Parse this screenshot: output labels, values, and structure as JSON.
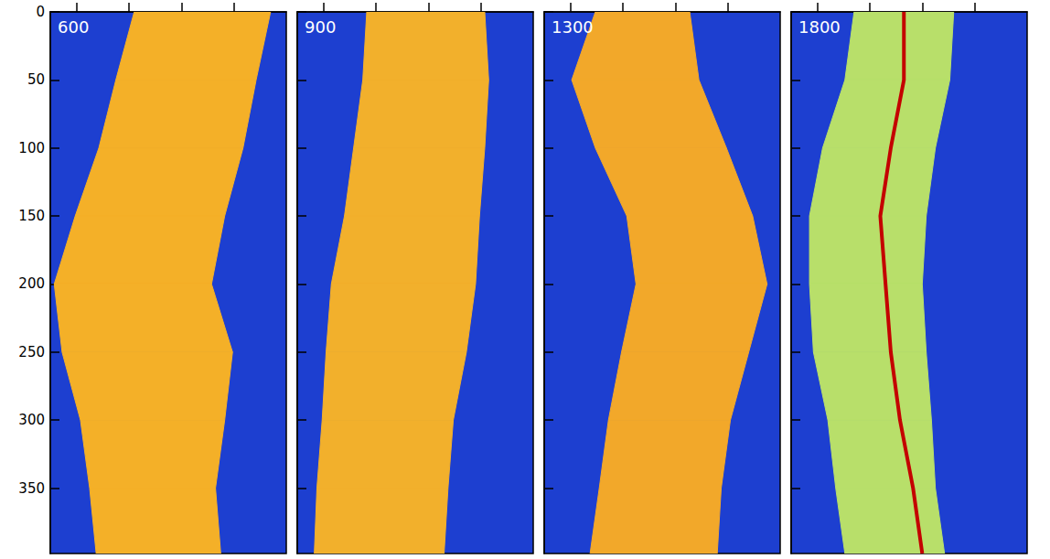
{
  "chart_data": [
    {
      "type": "band",
      "title": "600",
      "y": [
        0,
        50,
        100,
        150,
        200,
        250,
        300,
        350,
        398
      ],
      "left": [
        64,
        50,
        37,
        19,
        3,
        9,
        23,
        30,
        35
      ],
      "right": [
        168,
        157,
        147,
        133,
        123,
        139,
        133,
        126,
        130
      ],
      "color": "#f4b028",
      "xlim": [
        0,
        180
      ],
      "xticks": [
        20,
        60,
        100,
        140
      ],
      "ylim": [
        0,
        398
      ],
      "yticks": [
        0,
        50,
        100,
        150,
        200,
        250,
        300,
        350
      ],
      "tick_labels": "y",
      "grid": false
    },
    {
      "type": "band",
      "title": "900",
      "y": [
        0,
        50,
        100,
        150,
        200,
        250,
        300,
        350,
        398
      ],
      "left": [
        53,
        50,
        43,
        36,
        26,
        22,
        19,
        15,
        13
      ],
      "right": [
        143,
        146,
        143,
        139,
        136,
        129,
        119,
        115,
        112
      ],
      "color": "#f2b02c",
      "xlim": [
        0,
        180
      ],
      "xticks": [
        20,
        60,
        100,
        140
      ],
      "ylim": [
        0,
        398
      ],
      "yticks": [
        0,
        50,
        100,
        150,
        200,
        250,
        300,
        350
      ],
      "tick_labels": false,
      "grid": false
    },
    {
      "type": "band",
      "title": "1300",
      "y": [
        0,
        50,
        100,
        150,
        200,
        250,
        300,
        350,
        398
      ],
      "left": [
        39,
        21,
        39,
        63,
        70,
        59,
        49,
        42,
        35
      ],
      "right": [
        111,
        118,
        139,
        159,
        170,
        156,
        142,
        135,
        132
      ],
      "color": "#f2a82a",
      "xlim": [
        0,
        180
      ],
      "xticks": [
        20,
        60,
        100,
        140
      ],
      "ylim": [
        0,
        398
      ],
      "yticks": [
        0,
        50,
        100,
        150,
        200,
        250,
        300,
        350
      ],
      "tick_labels": false,
      "grid": false
    },
    {
      "type": "band",
      "title": "1800",
      "y": [
        0,
        50,
        100,
        150,
        200,
        250,
        300,
        350,
        398
      ],
      "left": [
        48,
        41,
        24,
        14,
        14,
        17,
        28,
        34,
        41
      ],
      "right": [
        124,
        121,
        110,
        103,
        100,
        103,
        107,
        110,
        117
      ],
      "color": "#b8df6a",
      "ridge": {
        "x": [
          86,
          86,
          76,
          68,
          72,
          76,
          83,
          93,
          100
        ],
        "color": "#c40000"
      },
      "xlim": [
        0,
        180
      ],
      "xticks": [
        20,
        60,
        100,
        140
      ],
      "ylim": [
        0,
        398
      ],
      "yticks": [
        0,
        50,
        100,
        150,
        200,
        250,
        300,
        350
      ],
      "tick_labels": false,
      "grid": false
    }
  ]
}
